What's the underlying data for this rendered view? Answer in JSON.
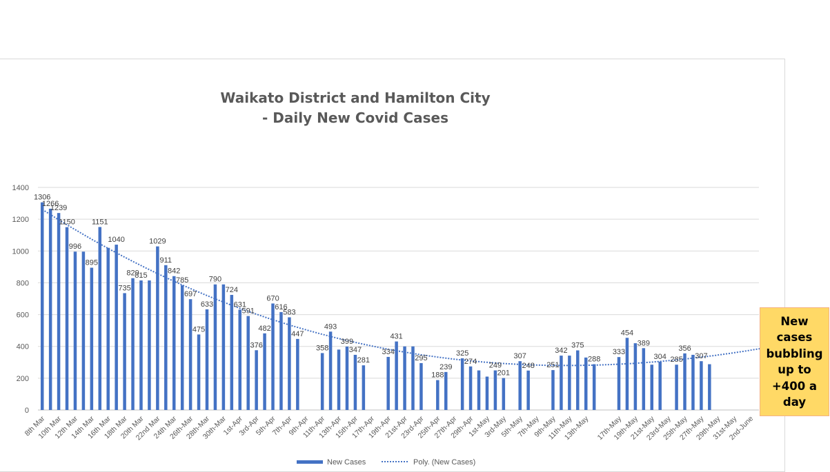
{
  "chart_data": {
    "type": "bar",
    "title_line1": "Waikato District and Hamilton City",
    "title_line2": "- Daily New Covid Cases",
    "ylim": [
      0,
      1400
    ],
    "yticks": [
      0,
      200,
      400,
      600,
      800,
      1000,
      1200,
      1400
    ],
    "grid": true,
    "legend_position": "bottom",
    "xtick_labels": [
      "8th Mar",
      "10th Mar",
      "12th Mar",
      "14th Mar",
      "16th Mar",
      "18th Mar",
      "20th Mar",
      "22nd Mar",
      "24th Mar",
      "26th-Mar",
      "28th-Mar",
      "30th-Mar",
      "1st-Apr",
      "3rd-Apr",
      "5th-Apr",
      "7th-Apr",
      "9th-Apr",
      "11th-Apr",
      "13th-Apr",
      "15th-Apr",
      "17th-Apr",
      "19th-Apr",
      "21st-Apr",
      "23rd-Apr",
      "25th-Apr",
      "27th-Apr",
      "29th-Apr",
      "1st-May",
      "3rd-May",
      "5th-May",
      "7th-May",
      "9th-May",
      "11th-May",
      "13th-May",
      "",
      "17th-May",
      "19th-May",
      "21st-May",
      "23rd-May",
      "25th-May",
      "27th-May",
      "29th-May",
      "31st-May",
      "2nd-June"
    ],
    "series": [
      {
        "name": "New Cases",
        "color": "#4472c4",
        "values": [
          1306,
          1266,
          1239,
          1150,
          996,
          996,
          895,
          1151,
          1020,
          1040,
          735,
          829,
          815,
          815,
          1029,
          911,
          842,
          785,
          697,
          475,
          633,
          790,
          790,
          724,
          631,
          591,
          376,
          482,
          670,
          616,
          583,
          447,
          null,
          null,
          358,
          493,
          380,
          399,
          347,
          281,
          null,
          null,
          334,
          431,
          400,
          400,
          295,
          null,
          188,
          239,
          null,
          325,
          274,
          249,
          210,
          249,
          201,
          null,
          307,
          248,
          null,
          null,
          251,
          342,
          342,
          375,
          330,
          288,
          null,
          null,
          333,
          454,
          420,
          389,
          285,
          304,
          null,
          285,
          356,
          347,
          307,
          288,
          null,
          null,
          null,
          null,
          null,
          null,
          null
        ],
        "labels": [
          "1306",
          "1266",
          "1239",
          "1150",
          "996",
          "",
          "895",
          "1151",
          "",
          "1040",
          "735",
          "829",
          "815",
          "",
          "1029",
          "911",
          "842",
          "785",
          "697",
          "475",
          "633",
          "790",
          "",
          "724",
          "631",
          "591",
          "376",
          "482",
          "670",
          "616",
          "583",
          "447",
          "",
          "",
          "358",
          "493",
          "",
          "399",
          "347",
          "281",
          "",
          "",
          "334",
          "431",
          "",
          "",
          "295",
          "",
          "188",
          "239",
          "",
          "325",
          "274",
          "",
          "",
          "249",
          "201",
          "",
          "307",
          "248",
          "",
          "",
          "251",
          "342",
          "",
          "375",
          "",
          "288",
          "",
          "",
          "333",
          "454",
          "",
          "389",
          "",
          "304",
          "",
          "285",
          "356",
          "",
          "307",
          "",
          "",
          "",
          "",
          "",
          "",
          "",
          ""
        ]
      },
      {
        "name": "Poly. (New Cases)",
        "color": "#4472c4",
        "coefficients": [
          1261.9,
          -33.17,
          0.3153,
          -0.000574
        ]
      }
    ]
  },
  "callout": {
    "text": "New cases bubbling up to +400 a day",
    "background": "#ffd966"
  }
}
